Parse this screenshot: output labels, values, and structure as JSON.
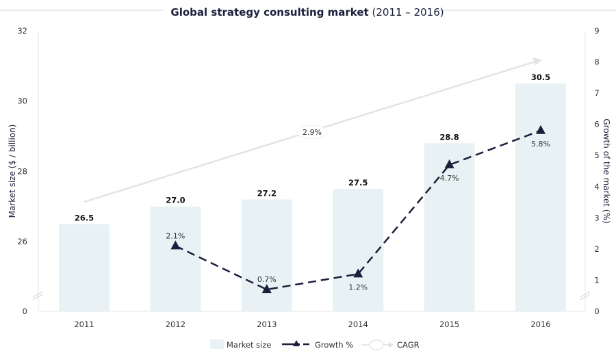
{
  "chart_data": {
    "type": "bar",
    "title_bold": "Global strategy consulting market",
    "title_normal": " (2011 – 2016)",
    "categories": [
      "2011",
      "2012",
      "2013",
      "2014",
      "2015",
      "2016"
    ],
    "series": [
      {
        "name": "Market size",
        "axis": "left",
        "type": "bar",
        "values": [
          26.5,
          27.0,
          27.2,
          27.5,
          28.8,
          30.5
        ],
        "labels": [
          "26.5",
          "27.0",
          "27.2",
          "27.5",
          "28.8",
          "30.5"
        ],
        "color": "#e8f2f4"
      },
      {
        "name": "Growth %",
        "axis": "right",
        "type": "line",
        "values": [
          null,
          2.1,
          0.7,
          1.2,
          4.7,
          5.8
        ],
        "labels": [
          "",
          "2.1%",
          "0.7%",
          "1.2%",
          "4.7%",
          "5.8%"
        ],
        "color": "#1b1f3b",
        "style": "dashed",
        "marker": "triangle"
      }
    ],
    "cagr": {
      "name": "CAGR",
      "label": "2.9%"
    },
    "ylabel": "Market size ($ / billion)",
    "y2label": "Growth of the market (%)",
    "yticks": [
      "0",
      "26",
      "28",
      "30",
      "32"
    ],
    "y2ticks": [
      "0",
      "1",
      "2",
      "3",
      "4",
      "5",
      "6",
      "7",
      "8",
      "9"
    ],
    "ylim": [
      26,
      32
    ],
    "y2lim": [
      0,
      9
    ],
    "axis_break": true,
    "grid": false,
    "legend_position": "bottom"
  }
}
